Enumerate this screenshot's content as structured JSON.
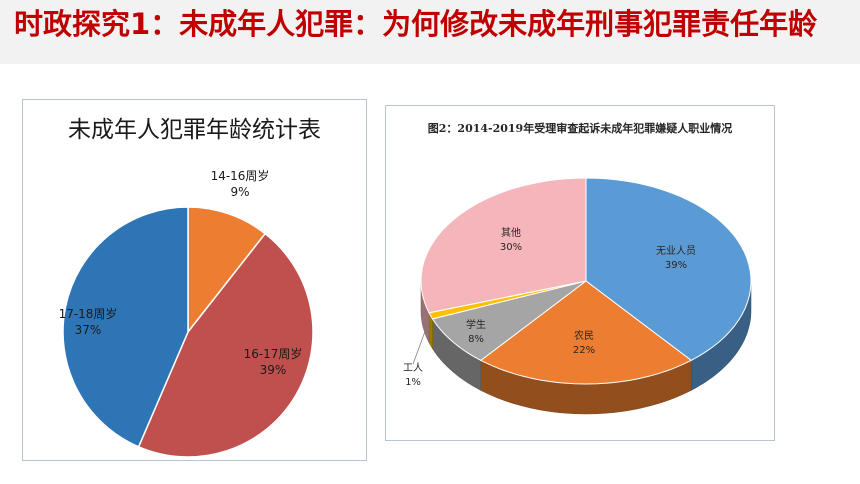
{
  "slide": {
    "title": "时政探究1：未成年人犯罪：为何修改未成年刑事犯罪责任年龄"
  },
  "chart_data": [
    {
      "type": "pie",
      "title": "未成年人犯罪年龄统计表",
      "categories": [
        "14-16周岁",
        "16-17周岁",
        "17-18周岁"
      ],
      "values": [
        9,
        39,
        37
      ],
      "value_labels": [
        "9%",
        "39%",
        "37%"
      ],
      "colors": [
        "#ed7d31",
        "#c0504d",
        "#2e75b6"
      ],
      "start_angle_deg": 0,
      "legend": "none"
    },
    {
      "type": "pie",
      "style": "3d",
      "title": "图2：2014-2019年受理审查起诉未成年犯罪嫌疑人职业情况",
      "categories": [
        "无业人员",
        "农民",
        "学生",
        "工人",
        "其他"
      ],
      "values": [
        39,
        22,
        8,
        1,
        30
      ],
      "value_labels": [
        "39%",
        "22%",
        "8%",
        "1%",
        "30%"
      ],
      "colors": [
        "#5b9bd5",
        "#ed7d31",
        "#a5a5a5",
        "#ffc000",
        "#f4b6bb"
      ],
      "legend": "none"
    }
  ]
}
